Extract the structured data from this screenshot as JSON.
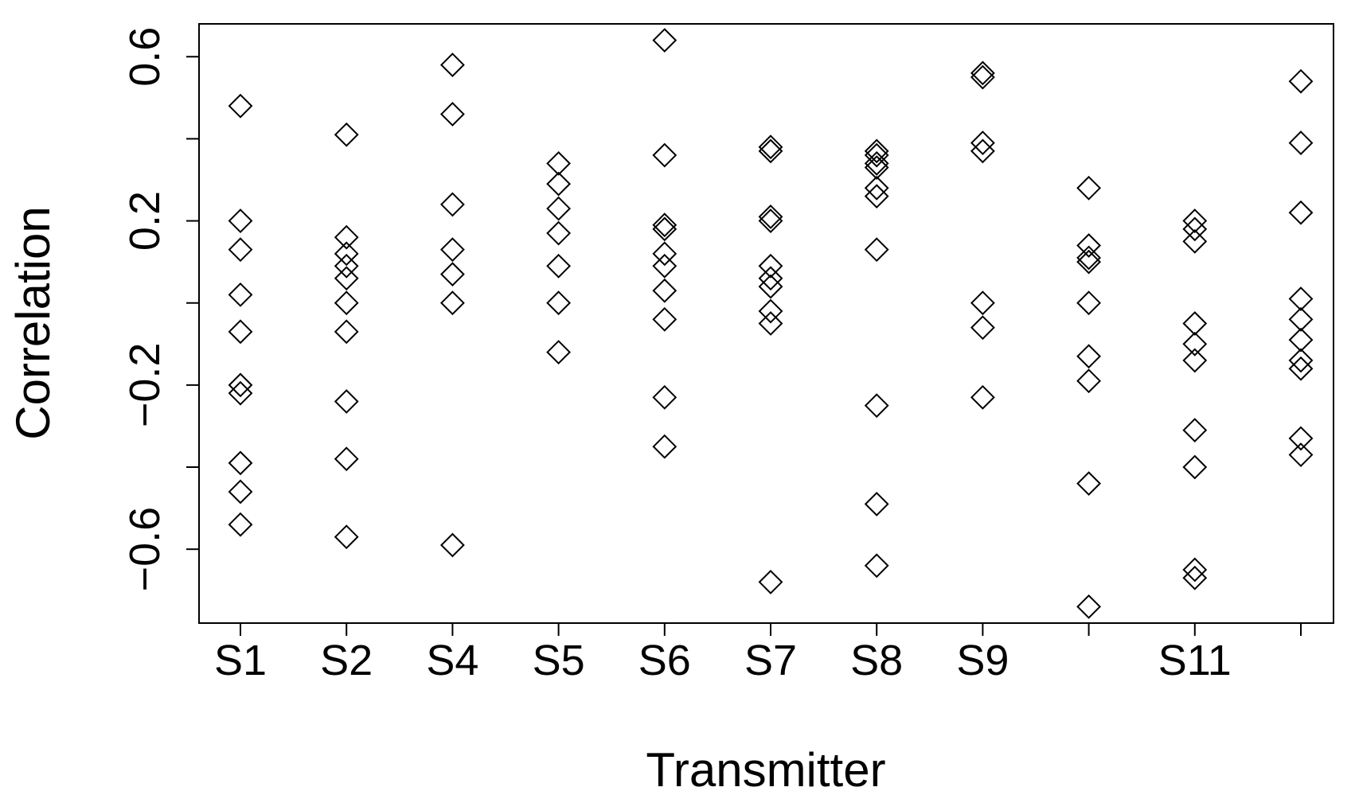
{
  "chart_data": {
    "type": "scatter",
    "title": "",
    "xlabel": "Transmitter",
    "ylabel": "Correlation",
    "ylim": [
      -0.78,
      0.68
    ],
    "yticks": [
      -0.6,
      -0.4,
      -0.2,
      0.0,
      0.2,
      0.4,
      0.6
    ],
    "ytick_labels": [
      "−0.6",
      "",
      "−0.2",
      "",
      "0.2",
      "",
      "0.6"
    ],
    "categories": [
      "S1",
      "S2",
      "S4",
      "S5",
      "S6",
      "S7",
      "S8",
      "S9",
      "",
      "S11",
      ""
    ],
    "marker": "diamond-open",
    "grid": false,
    "series": [
      {
        "values": [
          0.48,
          0.2,
          0.13,
          0.02,
          -0.07,
          -0.2,
          -0.22,
          -0.39,
          -0.46,
          -0.54
        ]
      },
      {
        "values": [
          0.41,
          0.16,
          0.12,
          0.09,
          0.06,
          0.0,
          -0.07,
          -0.24,
          -0.38,
          -0.57
        ]
      },
      {
        "values": [
          0.58,
          0.46,
          0.24,
          0.13,
          0.07,
          0.0,
          -0.59
        ]
      },
      {
        "values": [
          0.34,
          0.29,
          0.23,
          0.17,
          0.09,
          0.0,
          -0.12
        ]
      },
      {
        "values": [
          0.64,
          0.36,
          0.19,
          0.18,
          0.12,
          0.09,
          0.03,
          -0.04,
          -0.23,
          -0.35
        ]
      },
      {
        "values": [
          0.38,
          0.37,
          0.21,
          0.2,
          0.09,
          0.06,
          0.04,
          -0.02,
          -0.05,
          -0.68
        ]
      },
      {
        "values": [
          0.37,
          0.36,
          0.34,
          0.33,
          0.28,
          0.26,
          0.13,
          -0.25,
          -0.49,
          -0.64
        ]
      },
      {
        "values": [
          0.56,
          0.55,
          0.39,
          0.37,
          0.0,
          -0.06,
          -0.23
        ]
      },
      {
        "values": [
          0.28,
          0.14,
          0.11,
          0.1,
          0.0,
          -0.13,
          -0.19,
          -0.44,
          -0.74
        ]
      },
      {
        "values": [
          0.2,
          0.18,
          0.15,
          -0.05,
          -0.1,
          -0.14,
          -0.31,
          -0.4,
          -0.65,
          -0.67
        ]
      },
      {
        "values": [
          0.54,
          0.39,
          0.22,
          0.01,
          -0.04,
          -0.09,
          -0.14,
          -0.16,
          -0.33,
          -0.37
        ]
      }
    ]
  }
}
